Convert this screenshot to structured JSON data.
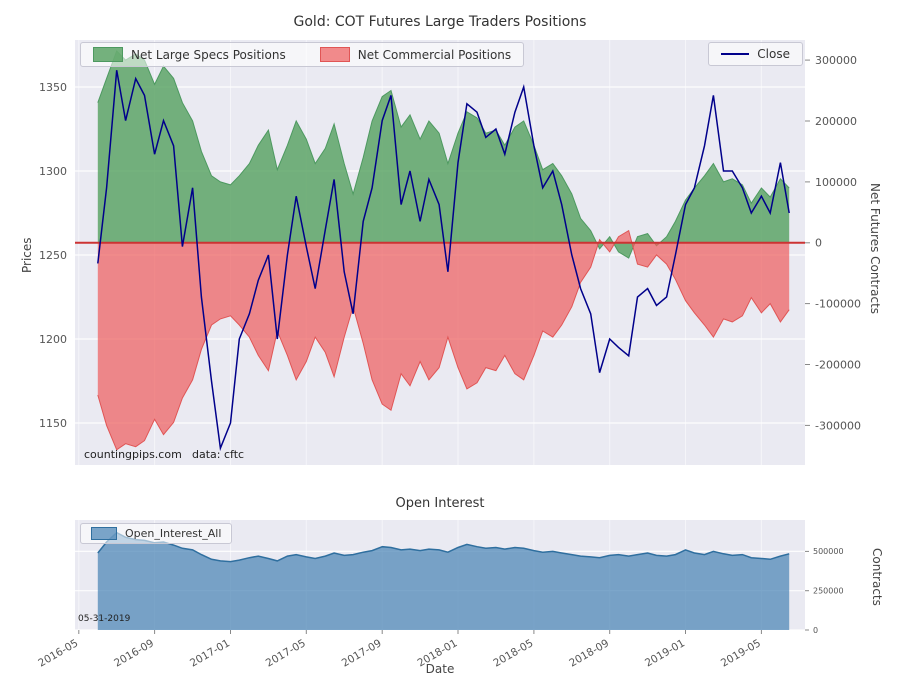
{
  "figure": {
    "bg": "#ffffff",
    "axes_bg": "#eaeaf2",
    "grid_color": "#ffffff",
    "tick_color": "#555555",
    "zero_line_color": "#cc3333"
  },
  "chart_data": [
    {
      "type": "area+line",
      "title": "Gold: COT Futures Large Traders Positions",
      "ylabel_left": "Prices",
      "ylabel_right": "Net Futures Contracts",
      "legend_position": "upper left / upper right",
      "grid": true,
      "xlim": [
        "2016-04-25",
        "2019-07-10"
      ],
      "x_ticks": [
        "2016-05",
        "2016-09",
        "2017-01",
        "2017-05",
        "2017-09",
        "2018-01",
        "2018-05",
        "2018-09",
        "2019-01",
        "2019-05"
      ],
      "price_axis": {
        "ticks": [
          1150,
          1200,
          1250,
          1300,
          1350
        ],
        "lim": [
          1125,
          1378
        ]
      },
      "contracts_axis": {
        "ticks": [
          -300000,
          -200000,
          -100000,
          0,
          100000,
          200000,
          300000
        ],
        "lim": [
          -365000,
          333000
        ]
      },
      "annotations": [
        "countingpips.com",
        "data: cftc"
      ],
      "x": [
        "2016-06-01",
        "2016-06-15",
        "2016-07-01",
        "2016-07-15",
        "2016-08-01",
        "2016-08-15",
        "2016-09-01",
        "2016-09-15",
        "2016-10-01",
        "2016-10-15",
        "2016-11-01",
        "2016-11-15",
        "2016-12-01",
        "2016-12-15",
        "2017-01-01",
        "2017-01-15",
        "2017-02-01",
        "2017-02-15",
        "2017-03-01",
        "2017-03-15",
        "2017-04-01",
        "2017-04-15",
        "2017-05-01",
        "2017-05-15",
        "2017-06-01",
        "2017-06-15",
        "2017-07-01",
        "2017-07-15",
        "2017-08-01",
        "2017-08-15",
        "2017-09-01",
        "2017-09-15",
        "2017-10-01",
        "2017-10-15",
        "2017-11-01",
        "2017-11-15",
        "2017-12-01",
        "2017-12-15",
        "2018-01-01",
        "2018-01-15",
        "2018-02-01",
        "2018-02-15",
        "2018-03-01",
        "2018-03-15",
        "2018-04-01",
        "2018-04-15",
        "2018-05-01",
        "2018-05-15",
        "2018-06-01",
        "2018-06-15",
        "2018-07-01",
        "2018-07-15",
        "2018-08-01",
        "2018-08-15",
        "2018-09-01",
        "2018-09-15",
        "2018-10-01",
        "2018-10-15",
        "2018-11-01",
        "2018-11-15",
        "2018-12-01",
        "2018-12-15",
        "2019-01-01",
        "2019-01-15",
        "2019-02-01",
        "2019-02-15",
        "2019-03-01",
        "2019-03-15",
        "2019-04-01",
        "2019-04-15",
        "2019-05-01",
        "2019-05-15",
        "2019-06-01",
        "2019-06-15"
      ],
      "series": [
        {
          "name": "Net Large Specs Positions",
          "plot": "area",
          "axis": "contracts",
          "color": "#4d9960",
          "fill": "rgba(84,160,94,0.8)",
          "values": [
            230000,
            270000,
            315000,
            300000,
            310000,
            300000,
            260000,
            290000,
            270000,
            230000,
            200000,
            150000,
            110000,
            100000,
            95000,
            110000,
            130000,
            160000,
            185000,
            120000,
            160000,
            200000,
            170000,
            130000,
            155000,
            195000,
            130000,
            80000,
            140000,
            200000,
            240000,
            250000,
            190000,
            210000,
            170000,
            200000,
            180000,
            130000,
            180000,
            215000,
            205000,
            180000,
            185000,
            160000,
            190000,
            200000,
            160000,
            120000,
            130000,
            110000,
            80000,
            40000,
            20000,
            -10000,
            10000,
            -15000,
            -25000,
            10000,
            15000,
            -5000,
            10000,
            35000,
            70000,
            90000,
            110000,
            130000,
            100000,
            105000,
            95000,
            65000,
            90000,
            75000,
            105000,
            90000
          ]
        },
        {
          "name": "Net Commercial Positions",
          "plot": "area",
          "axis": "contracts",
          "color": "#e05555",
          "fill": "rgba(238,95,95,0.72)",
          "values": [
            -250000,
            -300000,
            -340000,
            -330000,
            -335000,
            -325000,
            -290000,
            -315000,
            -295000,
            -255000,
            -225000,
            -175000,
            -135000,
            -125000,
            -120000,
            -135000,
            -155000,
            -185000,
            -210000,
            -145000,
            -185000,
            -225000,
            -195000,
            -155000,
            -180000,
            -220000,
            -155000,
            -105000,
            -165000,
            -225000,
            -265000,
            -275000,
            -215000,
            -235000,
            -195000,
            -225000,
            -205000,
            -155000,
            -205000,
            -240000,
            -230000,
            -205000,
            -210000,
            -185000,
            -215000,
            -225000,
            -185000,
            -145000,
            -155000,
            -135000,
            -105000,
            -65000,
            -40000,
            5000,
            -15000,
            10000,
            20000,
            -35000,
            -40000,
            -20000,
            -35000,
            -60000,
            -95000,
            -115000,
            -135000,
            -155000,
            -125000,
            -130000,
            -120000,
            -90000,
            -115000,
            -100000,
            -130000,
            -110000
          ]
        },
        {
          "name": "Close",
          "plot": "line",
          "axis": "price",
          "color": "#00008b",
          "fill": "none",
          "values": [
            1245,
            1290,
            1360,
            1330,
            1355,
            1345,
            1310,
            1330,
            1315,
            1255,
            1290,
            1225,
            1175,
            1135,
            1150,
            1200,
            1215,
            1235,
            1250,
            1200,
            1250,
            1285,
            1255,
            1230,
            1265,
            1295,
            1240,
            1215,
            1270,
            1290,
            1330,
            1345,
            1280,
            1300,
            1270,
            1295,
            1280,
            1240,
            1305,
            1340,
            1335,
            1320,
            1325,
            1310,
            1335,
            1350,
            1315,
            1290,
            1300,
            1280,
            1250,
            1230,
            1215,
            1180,
            1200,
            1195,
            1190,
            1225,
            1230,
            1220,
            1225,
            1250,
            1280,
            1290,
            1315,
            1345,
            1300,
            1300,
            1290,
            1275,
            1285,
            1275,
            1305,
            1275
          ]
        }
      ]
    },
    {
      "type": "area",
      "title": "Open Interest",
      "xlabel": "Date",
      "ylabel_right": "Contracts",
      "annotation": "05-31-2019",
      "grid": true,
      "y_ticks": [
        0,
        250000,
        500000
      ],
      "ylim": [
        0,
        700000
      ],
      "x": [
        "2016-06-01",
        "2016-06-15",
        "2016-07-01",
        "2016-07-15",
        "2016-08-01",
        "2016-08-15",
        "2016-09-01",
        "2016-09-15",
        "2016-10-01",
        "2016-10-15",
        "2016-11-01",
        "2016-11-15",
        "2016-12-01",
        "2016-12-15",
        "2017-01-01",
        "2017-01-15",
        "2017-02-01",
        "2017-02-15",
        "2017-03-01",
        "2017-03-15",
        "2017-04-01",
        "2017-04-15",
        "2017-05-01",
        "2017-05-15",
        "2017-06-01",
        "2017-06-15",
        "2017-07-01",
        "2017-07-15",
        "2017-08-01",
        "2017-08-15",
        "2017-09-01",
        "2017-09-15",
        "2017-10-01",
        "2017-10-15",
        "2017-11-01",
        "2017-11-15",
        "2017-12-01",
        "2017-12-15",
        "2018-01-01",
        "2018-01-15",
        "2018-02-01",
        "2018-02-15",
        "2018-03-01",
        "2018-03-15",
        "2018-04-01",
        "2018-04-15",
        "2018-05-01",
        "2018-05-15",
        "2018-06-01",
        "2018-06-15",
        "2018-07-01",
        "2018-07-15",
        "2018-08-01",
        "2018-08-15",
        "2018-09-01",
        "2018-09-15",
        "2018-10-01",
        "2018-10-15",
        "2018-11-01",
        "2018-11-15",
        "2018-12-01",
        "2018-12-15",
        "2019-01-01",
        "2019-01-15",
        "2019-02-01",
        "2019-02-15",
        "2019-03-01",
        "2019-03-15",
        "2019-04-01",
        "2019-04-15",
        "2019-05-01",
        "2019-05-15",
        "2019-06-01",
        "2019-06-15"
      ],
      "series": [
        {
          "name": "Open_Interest_All",
          "plot": "area",
          "color": "#2f6f9f",
          "fill": "rgba(70,130,180,0.7)",
          "values": [
            490000,
            560000,
            620000,
            590000,
            575000,
            570000,
            555000,
            560000,
            540000,
            520000,
            510000,
            480000,
            450000,
            440000,
            435000,
            445000,
            460000,
            470000,
            455000,
            440000,
            470000,
            480000,
            465000,
            455000,
            470000,
            490000,
            475000,
            480000,
            495000,
            505000,
            530000,
            525000,
            510000,
            515000,
            505000,
            515000,
            510000,
            495000,
            525000,
            545000,
            530000,
            520000,
            525000,
            515000,
            525000,
            520000,
            505000,
            495000,
            500000,
            490000,
            480000,
            470000,
            465000,
            460000,
            475000,
            480000,
            470000,
            480000,
            490000,
            475000,
            470000,
            480000,
            510000,
            490000,
            480000,
            500000,
            485000,
            475000,
            480000,
            460000,
            455000,
            450000,
            470000,
            485000
          ]
        }
      ]
    }
  ]
}
